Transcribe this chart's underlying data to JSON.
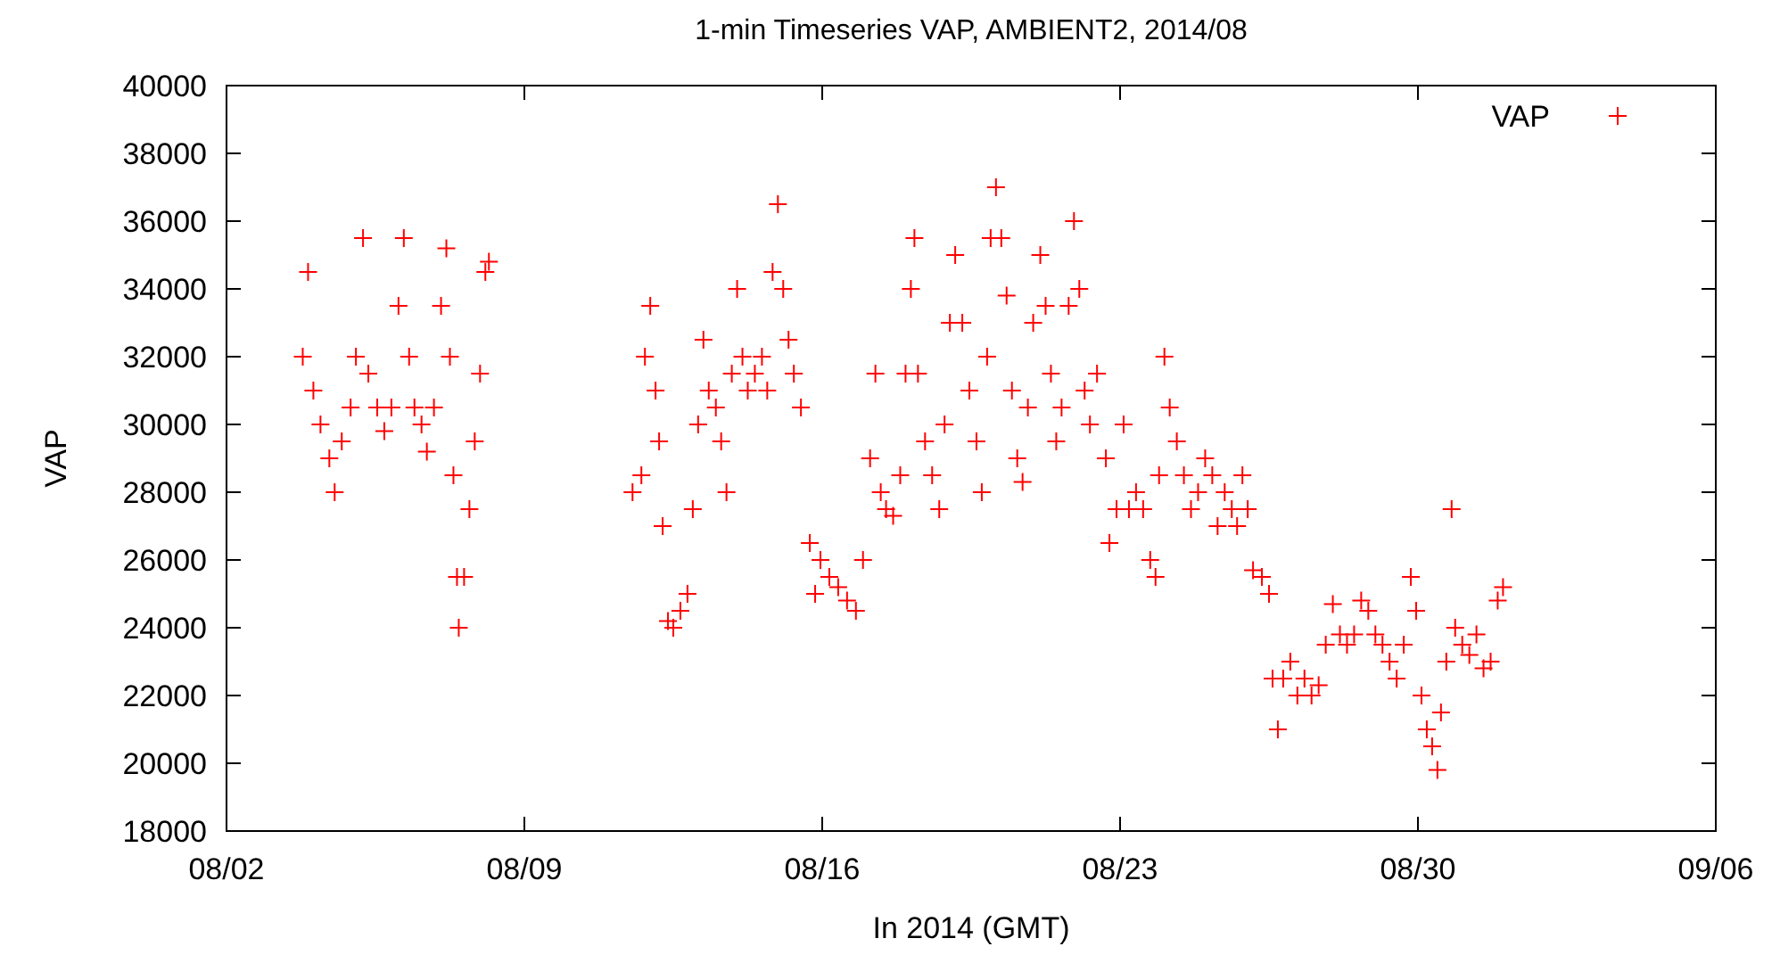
{
  "chart_data": {
    "type": "scatter",
    "title": "1-min Timeseries VAP, AMBIENT2, 2014/08",
    "xlabel": "In 2014 (GMT)",
    "ylabel": "VAP",
    "xlim": [
      "2014-08-02",
      "2014-09-06"
    ],
    "xticks": [
      {
        "value": "2014-08-02",
        "label": "08/02"
      },
      {
        "value": "2014-08-09",
        "label": "08/09"
      },
      {
        "value": "2014-08-16",
        "label": "08/16"
      },
      {
        "value": "2014-08-23",
        "label": "08/23"
      },
      {
        "value": "2014-08-30",
        "label": "08/30"
      },
      {
        "value": "2014-09-06",
        "label": "09/06"
      }
    ],
    "ylim": [
      18000,
      40000
    ],
    "yticks": [
      18000,
      20000,
      22000,
      24000,
      26000,
      28000,
      30000,
      32000,
      34000,
      36000,
      38000,
      40000
    ],
    "grid": false,
    "legend": "top right",
    "marker": "cross",
    "series": [
      {
        "name": "VAP",
        "color": "#ff0000",
        "x": [
          "2014-08-03T19:00",
          "2014-08-03T22:00",
          "2014-08-04T01:00",
          "2014-08-04T05:00",
          "2014-08-04T10:00",
          "2014-08-04T13:00",
          "2014-08-04T17:00",
          "2014-08-04T22:00",
          "2014-08-05T01:00",
          "2014-08-05T05:00",
          "2014-08-05T08:00",
          "2014-08-05T13:00",
          "2014-08-05T17:00",
          "2014-08-05T21:00",
          "2014-08-06T01:00",
          "2014-08-06T04:00",
          "2014-08-06T07:00",
          "2014-08-06T10:00",
          "2014-08-06T14:00",
          "2014-08-06T17:00",
          "2014-08-06T21:00",
          "2014-08-07T01:00",
          "2014-08-07T04:00",
          "2014-08-07T06:00",
          "2014-08-07T08:00",
          "2014-08-07T10:00",
          "2014-08-07T11:00",
          "2014-08-07T14:00",
          "2014-08-07T17:00",
          "2014-08-07T20:00",
          "2014-08-07T23:00",
          "2014-08-08T02:00",
          "2014-08-08T04:00",
          "2014-08-11T13:00",
          "2014-08-11T18:00",
          "2014-08-11T20:00",
          "2014-08-11T23:00",
          "2014-08-12T02:00",
          "2014-08-12T04:00",
          "2014-08-12T06:00",
          "2014-08-12T09:00",
          "2014-08-12T12:00",
          "2014-08-12T16:00",
          "2014-08-12T20:00",
          "2014-08-12T23:00",
          "2014-08-13T02:00",
          "2014-08-13T05:00",
          "2014-08-13T08:00",
          "2014-08-13T12:00",
          "2014-08-13T15:00",
          "2014-08-13T18:00",
          "2014-08-13T21:00",
          "2014-08-14T00:00",
          "2014-08-14T03:00",
          "2014-08-14T06:00",
          "2014-08-14T10:00",
          "2014-08-14T14:00",
          "2014-08-14T17:00",
          "2014-08-14T20:00",
          "2014-08-14T23:00",
          "2014-08-15T02:00",
          "2014-08-15T05:00",
          "2014-08-15T08:00",
          "2014-08-15T12:00",
          "2014-08-15T17:00",
          "2014-08-15T20:00",
          "2014-08-15T23:00",
          "2014-08-16T04:00",
          "2014-08-16T09:00",
          "2014-08-16T14:00",
          "2014-08-16T19:00",
          "2014-08-16T23:00",
          "2014-08-17T03:00",
          "2014-08-17T06:00",
          "2014-08-17T09:00",
          "2014-08-17T12:00",
          "2014-08-17T16:00",
          "2014-08-17T20:00",
          "2014-08-17T23:00",
          "2014-08-18T02:00",
          "2014-08-18T04:00",
          "2014-08-18T06:00",
          "2014-08-18T10:00",
          "2014-08-18T14:00",
          "2014-08-18T18:00",
          "2014-08-18T21:00",
          "2014-08-19T00:00",
          "2014-08-19T03:00",
          "2014-08-19T07:00",
          "2014-08-19T11:00",
          "2014-08-19T15:00",
          "2014-08-19T18:00",
          "2014-08-19T21:00",
          "2014-08-19T23:00",
          "2014-08-20T02:00",
          "2014-08-20T05:00",
          "2014-08-20T08:00",
          "2014-08-20T11:00",
          "2014-08-20T14:00",
          "2014-08-20T17:00",
          "2014-08-20T20:00",
          "2014-08-20T23:00",
          "2014-08-21T03:00",
          "2014-08-21T06:00",
          "2014-08-21T09:00",
          "2014-08-21T12:00",
          "2014-08-21T15:00",
          "2014-08-21T19:00",
          "2014-08-21T22:00",
          "2014-08-22T01:00",
          "2014-08-22T04:00",
          "2014-08-22T07:00",
          "2014-08-22T11:00",
          "2014-08-22T16:00",
          "2014-08-22T18:00",
          "2014-08-22T22:00",
          "2014-08-23T02:00",
          "2014-08-23T05:00",
          "2014-08-23T09:00",
          "2014-08-23T13:00",
          "2014-08-23T17:00",
          "2014-08-23T20:00",
          "2014-08-23T22:00",
          "2014-08-24T01:00",
          "2014-08-24T04:00",
          "2014-08-24T08:00",
          "2014-08-24T12:00",
          "2014-08-24T16:00",
          "2014-08-24T20:00",
          "2014-08-25T00:00",
          "2014-08-25T04:00",
          "2014-08-25T07:00",
          "2014-08-25T11:00",
          "2014-08-25T15:00",
          "2014-08-25T18:00",
          "2014-08-25T21:00",
          "2014-08-26T00:00",
          "2014-08-26T03:00",
          "2014-08-26T08:00",
          "2014-08-26T12:00",
          "2014-08-26T14:00",
          "2014-08-26T17:00",
          "2014-08-26T20:00",
          "2014-08-27T00:00",
          "2014-08-27T04:00",
          "2014-08-27T08:00",
          "2014-08-27T12:00",
          "2014-08-27T16:00",
          "2014-08-27T20:00",
          "2014-08-28T00:00",
          "2014-08-28T04:00",
          "2014-08-28T08:00",
          "2014-08-28T12:00",
          "2014-08-28T16:00",
          "2014-08-28T20:00",
          "2014-08-29T00:00",
          "2014-08-29T04:00",
          "2014-08-29T08:00",
          "2014-08-29T12:00",
          "2014-08-29T16:00",
          "2014-08-29T20:00",
          "2014-08-29T23:00",
          "2014-08-30T02:00",
          "2014-08-30T05:00",
          "2014-08-30T08:00",
          "2014-08-30T11:00",
          "2014-08-30T13:00",
          "2014-08-30T16:00",
          "2014-08-30T19:00",
          "2014-08-30T21:00",
          "2014-08-31T01:00",
          "2014-08-31T05:00",
          "2014-08-31T09:00",
          "2014-08-31T13:00",
          "2014-08-31T17:00",
          "2014-08-31T21:00",
          "2014-09-01T00:00"
        ],
        "values": [
          32000,
          34500,
          31000,
          30000,
          29000,
          28000,
          29500,
          30500,
          32000,
          35500,
          31500,
          30500,
          29800,
          30500,
          33500,
          35500,
          32000,
          30500,
          30000,
          29200,
          30500,
          33500,
          35200,
          32000,
          28500,
          25500,
          24000,
          25500,
          27500,
          29500,
          31500,
          34500,
          34800,
          28000,
          28500,
          32000,
          33500,
          31000,
          29500,
          27000,
          24200,
          24000,
          24500,
          25000,
          27500,
          30000,
          32500,
          31000,
          30500,
          29500,
          28000,
          31500,
          34000,
          32000,
          31000,
          31500,
          32000,
          31000,
          34500,
          36500,
          34000,
          32500,
          31500,
          30500,
          26500,
          25000,
          26000,
          25500,
          25200,
          24800,
          24500,
          26000,
          29000,
          31500,
          28000,
          27500,
          27300,
          28500,
          31500,
          34000,
          35500,
          31500,
          29500,
          28500,
          27500,
          30000,
          33000,
          35000,
          33000,
          31000,
          29500,
          28000,
          32000,
          35500,
          37000,
          35500,
          33800,
          31000,
          29000,
          28300,
          30500,
          33000,
          35000,
          33500,
          31500,
          29500,
          30500,
          33500,
          36000,
          34000,
          31000,
          30000,
          31500,
          29000,
          26500,
          27500,
          30000,
          27500,
          28000,
          27500,
          26000,
          25500,
          28500,
          32000,
          30500,
          29500,
          28500,
          27500,
          28000,
          29000,
          28500,
          27000,
          28000,
          27500,
          27000,
          28500,
          27500,
          25700,
          25500,
          25000,
          22500,
          21000,
          22500,
          23000,
          22000,
          22500,
          22000,
          22300,
          23500,
          24700,
          23800,
          23500,
          23800,
          24800,
          24500,
          23800,
          23500,
          23000,
          22500,
          23500,
          25500,
          24500,
          22000,
          21000,
          20500,
          19800,
          21500,
          23000,
          27500,
          24000,
          23500,
          23200,
          23800,
          22800,
          23000,
          24800,
          25200
        ]
      }
    ]
  }
}
